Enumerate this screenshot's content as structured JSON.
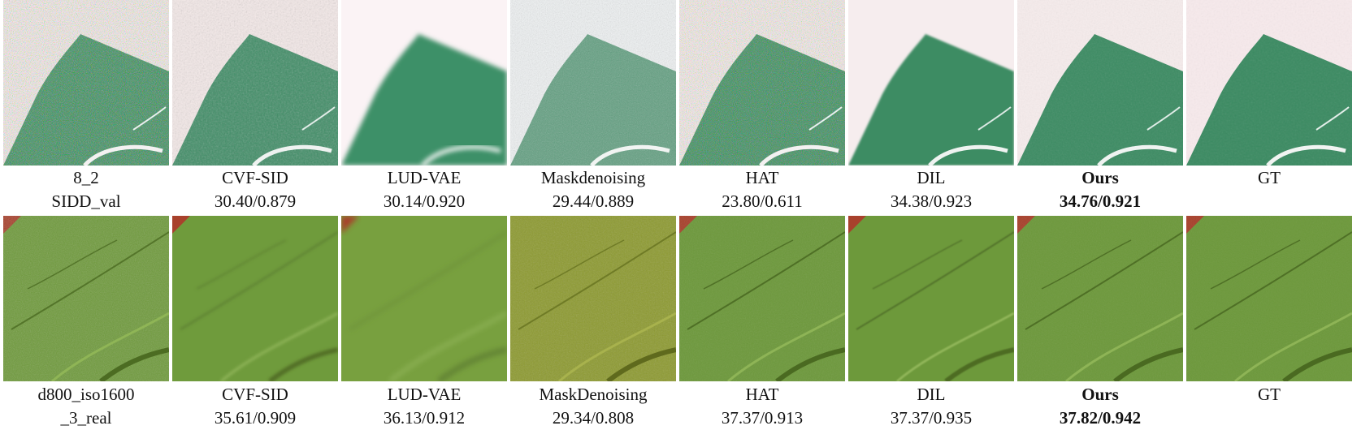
{
  "rows": [
    {
      "cells": [
        {
          "line1": "8_2",
          "line2": "SIDD_val"
        },
        {
          "line1": "CVF-SID",
          "line2": "30.40/0.879"
        },
        {
          "line1": "LUD-VAE",
          "line2": "30.14/0.920"
        },
        {
          "line1": "Maskdenoising",
          "line2": "29.44/0.889"
        },
        {
          "line1": "HAT",
          "line2": "23.80/0.611"
        },
        {
          "line1": "DIL",
          "line2": "34.38/0.923"
        },
        {
          "line1": "Ours",
          "line2": "34.76/0.921"
        },
        {
          "line1": "GT",
          "line2": ""
        }
      ]
    },
    {
      "cells": [
        {
          "line1": "d800_iso1600",
          "line2": "_3_real"
        },
        {
          "line1": "CVF-SID",
          "line2": "35.61/0.909"
        },
        {
          "line1": "LUD-VAE",
          "line2": "36.13/0.912"
        },
        {
          "line1": "MaskDenoising",
          "line2": "29.34/0.808"
        },
        {
          "line1": "HAT",
          "line2": "37.37/0.913"
        },
        {
          "line1": "DIL",
          "line2": "37.37/0.935"
        },
        {
          "line1": "Ours",
          "line2": "37.82/0.942"
        },
        {
          "line1": "GT",
          "line2": ""
        }
      ]
    }
  ],
  "colors": {
    "sidd_background": "#f6ece9",
    "sidd_green": "#3f9268",
    "leaf_green": "#6f9a3a",
    "leaf_corner_red": "#a8412c"
  }
}
